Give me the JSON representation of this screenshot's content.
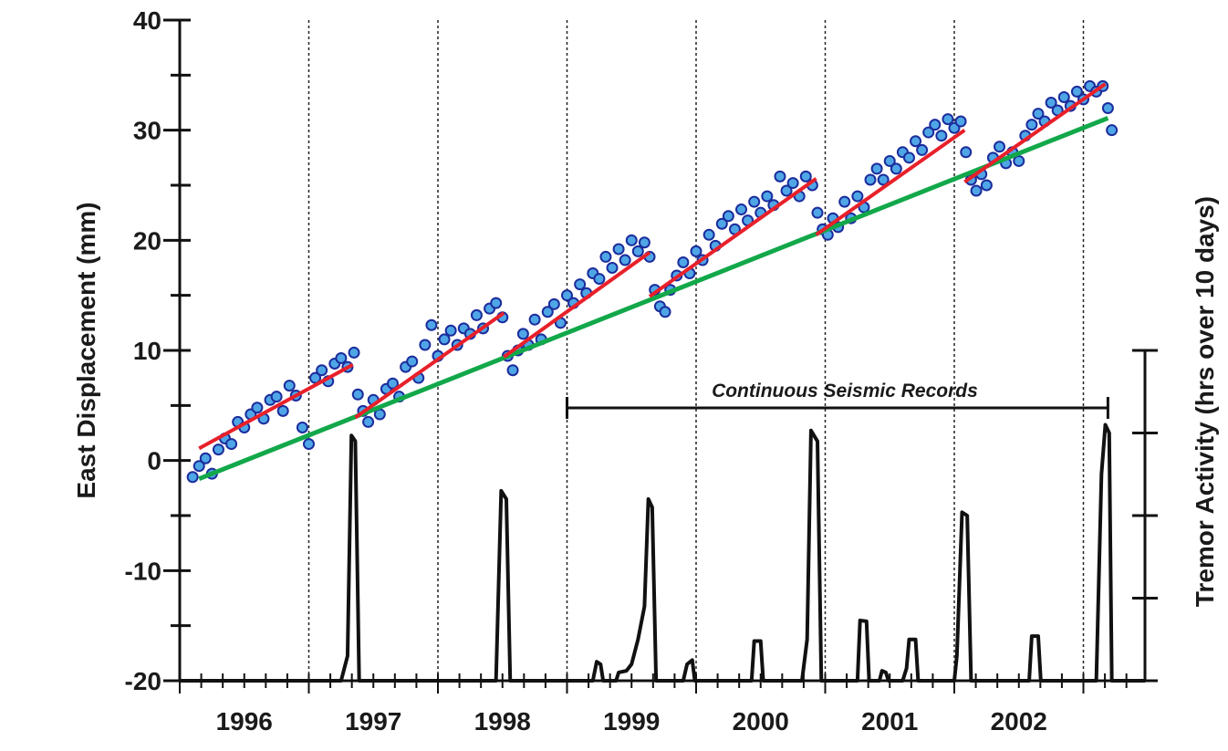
{
  "chart_data": {
    "type": "scatter",
    "title": "",
    "xlabel": "",
    "ylabel": "East Displacement (mm)",
    "y2label": "Tremor Activity (hrs over 10 days)",
    "xlim": [
      1996.0,
      2003.48
    ],
    "ylim": [
      -20,
      40
    ],
    "y2lim": [
      0,
      4
    ],
    "y2_tick_labels_shown": false,
    "yticks": [
      -20,
      -10,
      0,
      10,
      20,
      30,
      40
    ],
    "ytick_labels": [
      "-20",
      "-10",
      "0",
      "10",
      "20",
      "30",
      "40"
    ],
    "year_labels": [
      "1996",
      "1997",
      "1998",
      "1999",
      "2000",
      "2001",
      "2002"
    ],
    "year_boundaries": [
      1997,
      1998,
      1999,
      2000,
      2001,
      2002,
      2003
    ],
    "grid": "dotted vertical lines at year boundaries",
    "annotation": {
      "text": "Continuous Seismic Records",
      "x_range": [
        1999.0,
        2003.19
      ]
    },
    "colors": {
      "points_fill": "#4fa6e6",
      "points_edge": "#1c2c9c",
      "red_fit": "#e8202a",
      "green_trend": "#12a84a",
      "tremor": "#111111"
    },
    "gps_points": [
      [
        1996.1,
        -1.5
      ],
      [
        1996.15,
        -0.5
      ],
      [
        1996.2,
        0.2
      ],
      [
        1996.25,
        -1.2
      ],
      [
        1996.3,
        1.0
      ],
      [
        1996.35,
        2.0
      ],
      [
        1996.4,
        1.5
      ],
      [
        1996.45,
        3.5
      ],
      [
        1996.5,
        3.0
      ],
      [
        1996.55,
        4.2
      ],
      [
        1996.6,
        4.8
      ],
      [
        1996.65,
        3.8
      ],
      [
        1996.7,
        5.5
      ],
      [
        1996.75,
        5.8
      ],
      [
        1996.8,
        4.5
      ],
      [
        1996.85,
        6.8
      ],
      [
        1996.9,
        5.9
      ],
      [
        1996.95,
        3.0
      ],
      [
        1997.0,
        1.5
      ],
      [
        1997.05,
        7.5
      ],
      [
        1997.1,
        8.2
      ],
      [
        1997.15,
        7.2
      ],
      [
        1997.2,
        8.8
      ],
      [
        1997.25,
        9.3
      ],
      [
        1997.3,
        8.5
      ],
      [
        1997.35,
        9.8
      ],
      [
        1997.38,
        6.0
      ],
      [
        1997.42,
        4.5
      ],
      [
        1997.46,
        3.5
      ],
      [
        1997.5,
        5.5
      ],
      [
        1997.55,
        4.2
      ],
      [
        1997.6,
        6.5
      ],
      [
        1997.65,
        7.0
      ],
      [
        1997.7,
        5.8
      ],
      [
        1997.75,
        8.5
      ],
      [
        1997.8,
        9.0
      ],
      [
        1997.85,
        7.5
      ],
      [
        1997.9,
        10.5
      ],
      [
        1997.95,
        12.3
      ],
      [
        1998.0,
        9.5
      ],
      [
        1998.05,
        11.0
      ],
      [
        1998.1,
        11.8
      ],
      [
        1998.15,
        10.5
      ],
      [
        1998.2,
        12.0
      ],
      [
        1998.25,
        11.5
      ],
      [
        1998.3,
        13.2
      ],
      [
        1998.35,
        12.0
      ],
      [
        1998.4,
        13.8
      ],
      [
        1998.45,
        14.3
      ],
      [
        1998.5,
        13.0
      ],
      [
        1998.54,
        9.5
      ],
      [
        1998.58,
        8.2
      ],
      [
        1998.62,
        10.0
      ],
      [
        1998.66,
        11.5
      ],
      [
        1998.7,
        10.5
      ],
      [
        1998.75,
        12.8
      ],
      [
        1998.8,
        11.0
      ],
      [
        1998.85,
        13.5
      ],
      [
        1998.9,
        14.2
      ],
      [
        1998.95,
        12.5
      ],
      [
        1999.0,
        15.0
      ],
      [
        1999.05,
        14.3
      ],
      [
        1999.1,
        16.0
      ],
      [
        1999.15,
        15.2
      ],
      [
        1999.2,
        17.0
      ],
      [
        1999.25,
        16.5
      ],
      [
        1999.3,
        18.5
      ],
      [
        1999.35,
        17.5
      ],
      [
        1999.4,
        19.2
      ],
      [
        1999.45,
        18.2
      ],
      [
        1999.5,
        20.0
      ],
      [
        1999.55,
        19.0
      ],
      [
        1999.6,
        19.8
      ],
      [
        1999.64,
        18.5
      ],
      [
        1999.68,
        15.5
      ],
      [
        1999.72,
        14.0
      ],
      [
        1999.76,
        13.5
      ],
      [
        1999.8,
        15.5
      ],
      [
        1999.85,
        16.8
      ],
      [
        1999.9,
        18.0
      ],
      [
        1999.95,
        17.0
      ],
      [
        2000.0,
        19.0
      ],
      [
        2000.05,
        18.2
      ],
      [
        2000.1,
        20.5
      ],
      [
        2000.15,
        19.5
      ],
      [
        2000.2,
        21.5
      ],
      [
        2000.25,
        22.2
      ],
      [
        2000.3,
        21.0
      ],
      [
        2000.35,
        22.8
      ],
      [
        2000.4,
        21.8
      ],
      [
        2000.45,
        23.5
      ],
      [
        2000.5,
        22.5
      ],
      [
        2000.55,
        24.0
      ],
      [
        2000.6,
        23.2
      ],
      [
        2000.65,
        25.8
      ],
      [
        2000.7,
        24.5
      ],
      [
        2000.75,
        25.2
      ],
      [
        2000.8,
        24.0
      ],
      [
        2000.85,
        25.8
      ],
      [
        2000.9,
        25.0
      ],
      [
        2000.94,
        22.5
      ],
      [
        2000.98,
        21.0
      ],
      [
        2001.02,
        20.5
      ],
      [
        2001.06,
        22.0
      ],
      [
        2001.1,
        21.2
      ],
      [
        2001.15,
        23.5
      ],
      [
        2001.2,
        22.0
      ],
      [
        2001.25,
        24.0
      ],
      [
        2001.3,
        23.0
      ],
      [
        2001.35,
        25.5
      ],
      [
        2001.4,
        26.5
      ],
      [
        2001.45,
        25.5
      ],
      [
        2001.5,
        27.2
      ],
      [
        2001.55,
        26.5
      ],
      [
        2001.6,
        28.0
      ],
      [
        2001.65,
        27.5
      ],
      [
        2001.7,
        29.0
      ],
      [
        2001.75,
        28.2
      ],
      [
        2001.8,
        29.8
      ],
      [
        2001.85,
        30.5
      ],
      [
        2001.9,
        29.5
      ],
      [
        2001.95,
        31.0
      ],
      [
        2002.0,
        30.2
      ],
      [
        2002.05,
        30.8
      ],
      [
        2002.09,
        28.0
      ],
      [
        2002.13,
        25.5
      ],
      [
        2002.17,
        24.5
      ],
      [
        2002.21,
        26.0
      ],
      [
        2002.25,
        25.0
      ],
      [
        2002.3,
        27.5
      ],
      [
        2002.35,
        28.5
      ],
      [
        2002.4,
        27.0
      ],
      [
        2002.45,
        28.0
      ],
      [
        2002.5,
        27.2
      ],
      [
        2002.55,
        29.5
      ],
      [
        2002.6,
        30.5
      ],
      [
        2002.65,
        31.5
      ],
      [
        2002.7,
        30.8
      ],
      [
        2002.75,
        32.5
      ],
      [
        2002.8,
        31.8
      ],
      [
        2002.85,
        33.0
      ],
      [
        2002.9,
        32.2
      ],
      [
        2002.95,
        33.5
      ],
      [
        2003.0,
        32.8
      ],
      [
        2003.05,
        34.0
      ],
      [
        2003.1,
        33.5
      ],
      [
        2003.15,
        34.0
      ],
      [
        2003.19,
        32.0
      ],
      [
        2003.22,
        30.0
      ]
    ],
    "red_segments": [
      [
        [
          1996.15,
          1.1
        ],
        [
          1997.34,
          8.7
        ]
      ],
      [
        [
          1997.36,
          3.9
        ],
        [
          1998.51,
          13.4
        ]
      ],
      [
        [
          1998.51,
          9.4
        ],
        [
          1999.64,
          18.9
        ]
      ],
      [
        [
          1999.64,
          14.9
        ],
        [
          2000.93,
          25.6
        ]
      ],
      [
        [
          2000.93,
          20.5
        ],
        [
          2002.08,
          30.0
        ]
      ],
      [
        [
          2002.08,
          25.3
        ],
        [
          2003.17,
          34.2
        ]
      ]
    ],
    "green_trend": [
      [
        1996.15,
        -1.66
      ],
      [
        2003.19,
        31.1
      ]
    ],
    "tremor": [
      [
        1996.0,
        0
      ],
      [
        1997.25,
        0
      ],
      [
        1997.3,
        0.3
      ],
      [
        1997.33,
        2.97
      ],
      [
        1997.36,
        2.9
      ],
      [
        1997.39,
        0
      ],
      [
        1998.45,
        0
      ],
      [
        1998.49,
        2.3
      ],
      [
        1998.53,
        2.2
      ],
      [
        1998.56,
        0
      ],
      [
        1999.2,
        0
      ],
      [
        1999.23,
        0.23
      ],
      [
        1999.26,
        0.2
      ],
      [
        1999.28,
        0
      ],
      [
        1999.38,
        0
      ],
      [
        1999.4,
        0.1
      ],
      [
        1999.46,
        0.12
      ],
      [
        1999.5,
        0.2
      ],
      [
        1999.55,
        0.5
      ],
      [
        1999.6,
        0.9
      ],
      [
        1999.63,
        2.2
      ],
      [
        1999.66,
        2.1
      ],
      [
        1999.69,
        0
      ],
      [
        1999.9,
        0
      ],
      [
        1999.93,
        0.2
      ],
      [
        1999.97,
        0.25
      ],
      [
        1999.99,
        0
      ],
      [
        2000.43,
        0
      ],
      [
        2000.45,
        0.48
      ],
      [
        2000.5,
        0.48
      ],
      [
        2000.52,
        0
      ],
      [
        2000.82,
        0
      ],
      [
        2000.86,
        0.5
      ],
      [
        2000.89,
        3.03
      ],
      [
        2000.94,
        2.9
      ],
      [
        2000.97,
        0
      ],
      [
        2001.25,
        0
      ],
      [
        2001.27,
        0.73
      ],
      [
        2001.32,
        0.72
      ],
      [
        2001.34,
        0
      ],
      [
        2001.42,
        0
      ],
      [
        2001.44,
        0.12
      ],
      [
        2001.47,
        0.1
      ],
      [
        2001.49,
        0
      ],
      [
        2001.6,
        0
      ],
      [
        2001.63,
        0.15
      ],
      [
        2001.65,
        0.5
      ],
      [
        2001.7,
        0.5
      ],
      [
        2001.72,
        0
      ],
      [
        2002.0,
        0
      ],
      [
        2002.02,
        0.3
      ],
      [
        2002.06,
        2.04
      ],
      [
        2002.1,
        2.0
      ],
      [
        2002.13,
        0
      ],
      [
        2002.58,
        0
      ],
      [
        2002.6,
        0.54
      ],
      [
        2002.65,
        0.54
      ],
      [
        2002.67,
        0
      ],
      [
        2003.1,
        0
      ],
      [
        2003.14,
        2.5
      ],
      [
        2003.17,
        3.1
      ],
      [
        2003.2,
        3.0
      ],
      [
        2003.22,
        0
      ],
      [
        2003.48,
        0
      ]
    ]
  }
}
